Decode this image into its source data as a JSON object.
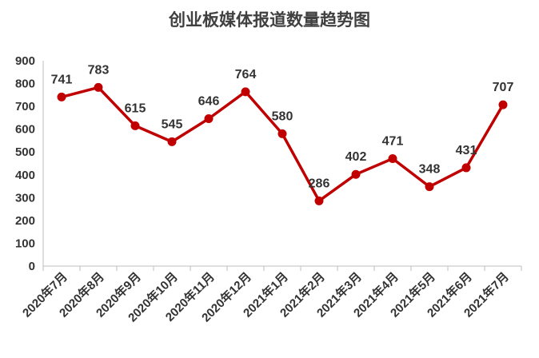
{
  "chart_data": {
    "type": "line",
    "title": "创业板媒体报道数量趋势图",
    "xlabel": "",
    "ylabel": "",
    "categories": [
      "2020年7月",
      "2020年8月",
      "2020年9月",
      "2020年10月",
      "2020年11月",
      "2020年12月",
      "2021年1月",
      "2021年2月",
      "2021年3月",
      "2021年4月",
      "2021年5月",
      "2021年6月",
      "2021年7月"
    ],
    "series": [
      {
        "values": [
          741,
          783,
          615,
          545,
          646,
          764,
          580,
          286,
          402,
          471,
          348,
          431,
          707
        ]
      }
    ],
    "yticks": [
      "0",
      "100",
      "200",
      "300",
      "400",
      "500",
      "600",
      "700",
      "800",
      "900"
    ],
    "ylim": [
      0,
      900
    ],
    "grid": false,
    "legend": "none",
    "line_color": "#C00000"
  }
}
